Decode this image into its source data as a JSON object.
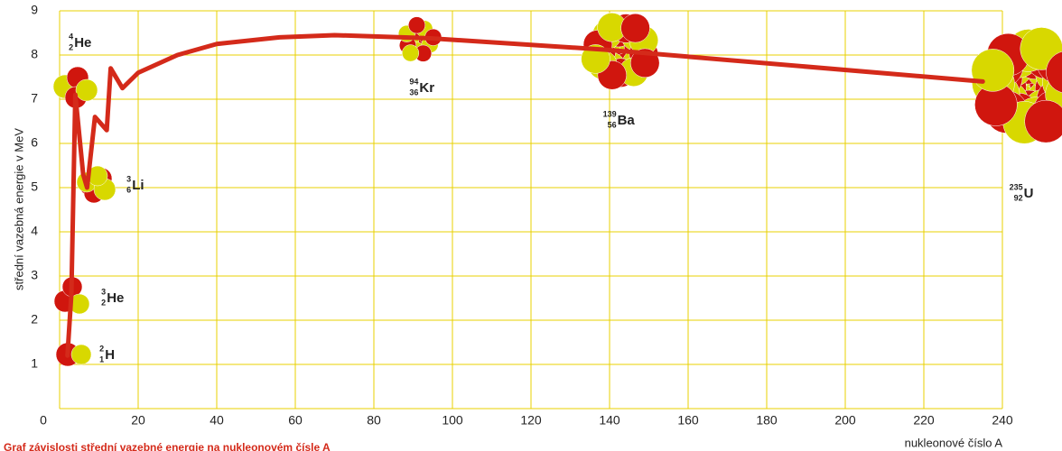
{
  "chart_data": {
    "type": "line",
    "ylabel": "střední vazebná energie v MeV",
    "xlabel": "nukleonové číslo A",
    "caption": "Graf závislosti střední vazebné energie na nukleonovém čísle A",
    "x": [
      2,
      3,
      4,
      6,
      7,
      9,
      12,
      13,
      16,
      20,
      30,
      40,
      56,
      70,
      94,
      139,
      235
    ],
    "series": [
      {
        "color": "#d42a1a",
        "values": [
          1.2,
          2.6,
          7.1,
          5.3,
          5.0,
          6.6,
          6.3,
          7.7,
          7.25,
          7.6,
          8.0,
          8.25,
          8.4,
          8.45,
          8.38,
          8.12,
          7.4
        ]
      }
    ],
    "xlim": [
      0,
      240
    ],
    "xticks": [
      0,
      20,
      40,
      60,
      80,
      100,
      120,
      140,
      160,
      180,
      200,
      220,
      240
    ],
    "ylim": [
      0,
      9
    ],
    "yticks": [
      1,
      2,
      3,
      4,
      5,
      6,
      7,
      8,
      9
    ],
    "grid": true,
    "grid_color": "#e8d000",
    "nuclides": [
      {
        "mass": "2",
        "charge": "1",
        "symbol": "H"
      },
      {
        "mass": "3",
        "charge": "2",
        "symbol": "He"
      },
      {
        "mass": "3",
        "charge": "6",
        "symbol": "Li"
      },
      {
        "mass": "4",
        "charge": "2",
        "symbol": "He"
      },
      {
        "mass": "94",
        "charge": "36",
        "symbol": "Kr"
      },
      {
        "mass": "139",
        "charge": "56",
        "symbol": "Ba"
      },
      {
        "mass": "235",
        "charge": "92",
        "symbol": "U"
      }
    ]
  }
}
